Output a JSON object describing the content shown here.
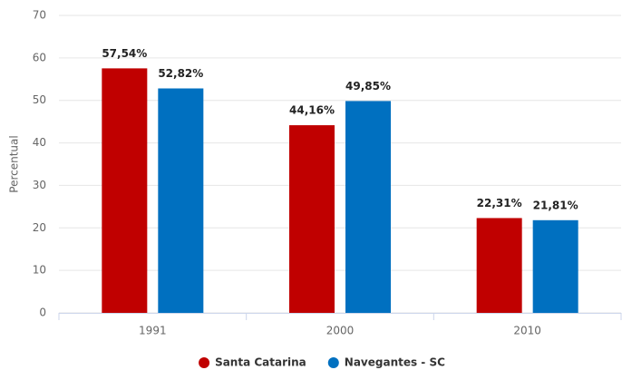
{
  "chart_data": {
    "type": "bar",
    "y_label": "Percentual",
    "categories": [
      "1991",
      "2000",
      "2010"
    ],
    "series": [
      {
        "name": "Santa Catarina",
        "color": "#c00000",
        "values": [
          57.54,
          44.16,
          22.31
        ],
        "value_labels": [
          "57,54%",
          "44,16%",
          "22,31%"
        ]
      },
      {
        "name": "Navegantes - SC",
        "color": "#0070c0",
        "values": [
          52.82,
          49.85,
          21.81
        ],
        "value_labels": [
          "52,82%",
          "49,85%",
          "21,81%"
        ]
      }
    ],
    "ylim": [
      0,
      70
    ],
    "yticks": [
      0,
      10,
      20,
      30,
      40,
      50,
      60,
      70
    ],
    "grid": true,
    "legend": "bottom"
  }
}
